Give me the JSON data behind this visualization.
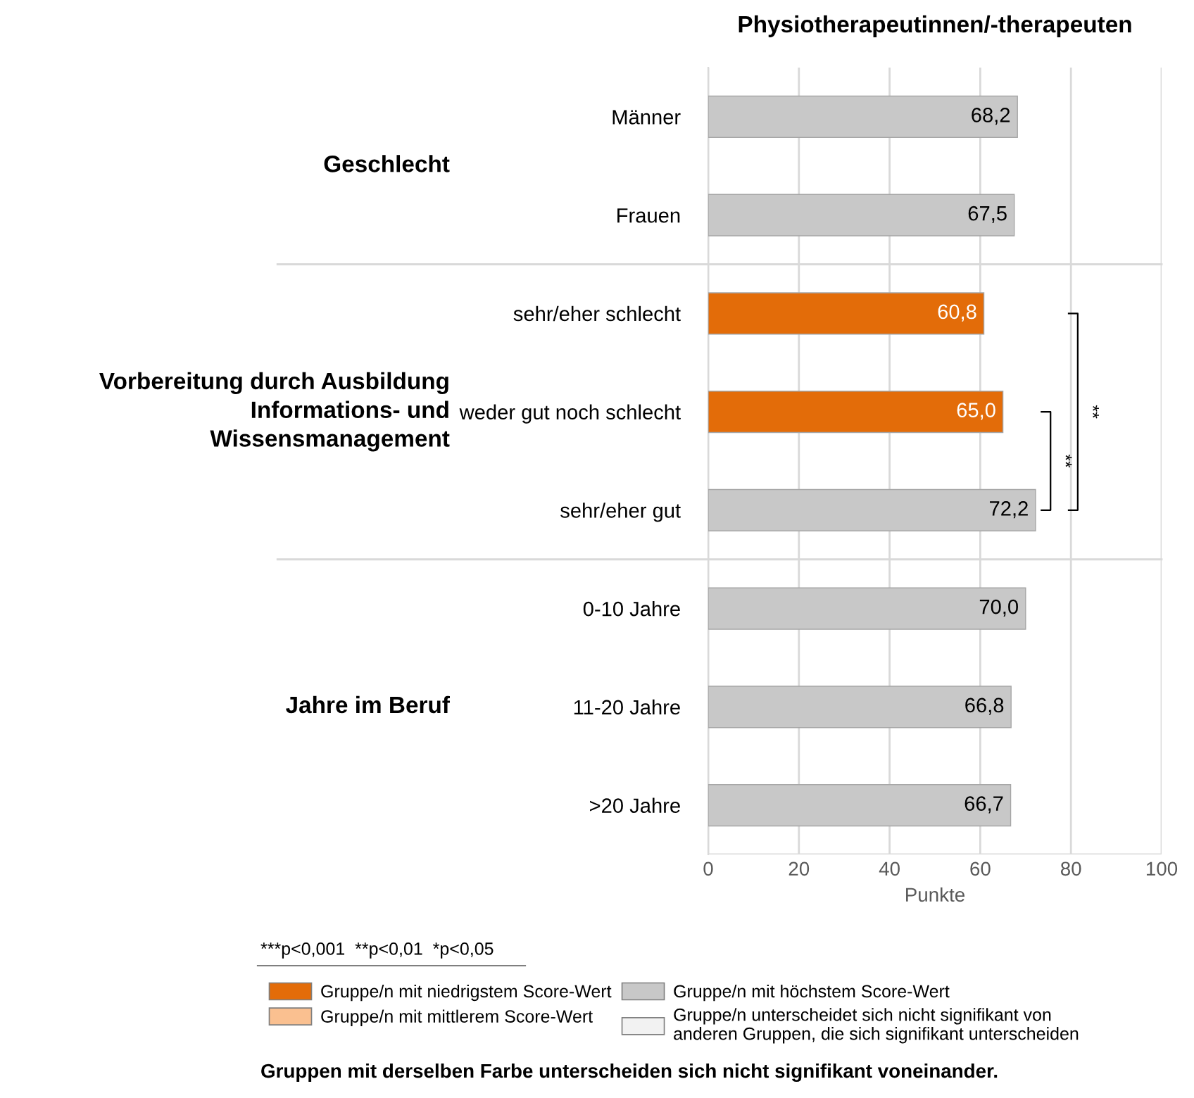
{
  "chart_data": {
    "type": "bar",
    "orientation": "horizontal",
    "title": "Physiotherapeutinnen/-therapeuten",
    "xlabel": "Punkte",
    "categories": [
      "Männer",
      "Frauen",
      "sehr/eher schlecht",
      "weder gut noch schlecht",
      "sehr/eher gut",
      "0-10 Jahre",
      "11-20 Jahre",
      ">20 Jahre"
    ],
    "series": [
      {
        "name": "Gruppe/n mit niedrigstem Score-Wert",
        "color": "#e36c09",
        "values": [
          null,
          null,
          60.8,
          65.0,
          null,
          null,
          null,
          null
        ],
        "value_labels": [
          null,
          null,
          "60,8",
          "65,0",
          null,
          null,
          null,
          null
        ]
      },
      {
        "name": "Gruppe/n mit mittlerem Score-Wert",
        "color": "#fac090",
        "values": [
          null,
          null,
          null,
          null,
          null,
          null,
          null,
          null
        ]
      },
      {
        "name": "Gruppe/n mit höchstem Score-Wert",
        "color": "#c8c8c8",
        "values": [
          68.2,
          67.5,
          null,
          null,
          72.2,
          70.0,
          66.8,
          66.7
        ],
        "value_labels": [
          "68,2",
          "67,5",
          null,
          null,
          "72,2",
          "70,0",
          "66,8",
          "66,7"
        ]
      },
      {
        "name": "Gruppe/n unterscheidet sich nicht signifikant von\nanderen Gruppen, die sich signifikant unterscheiden",
        "color": "#f2f2f2",
        "values": [
          null,
          null,
          null,
          null,
          null,
          null,
          null,
          null
        ]
      }
    ],
    "xlim": [
      0,
      100
    ],
    "xticks": [
      0,
      20,
      40,
      60,
      80,
      100
    ],
    "grid": "x",
    "legend": "bottom",
    "annotations": [
      "Geschlecht",
      "Vorbereitung durch Ausbildung\nInformations- und\nWissensmanagement",
      "Jahre im Beruf",
      "**",
      "**",
      "***p<0,001  **p<0,01  *p<0,05",
      "Gruppen mit derselben Farbe unterscheiden sich nicht signifikant voneinander."
    ]
  }
}
